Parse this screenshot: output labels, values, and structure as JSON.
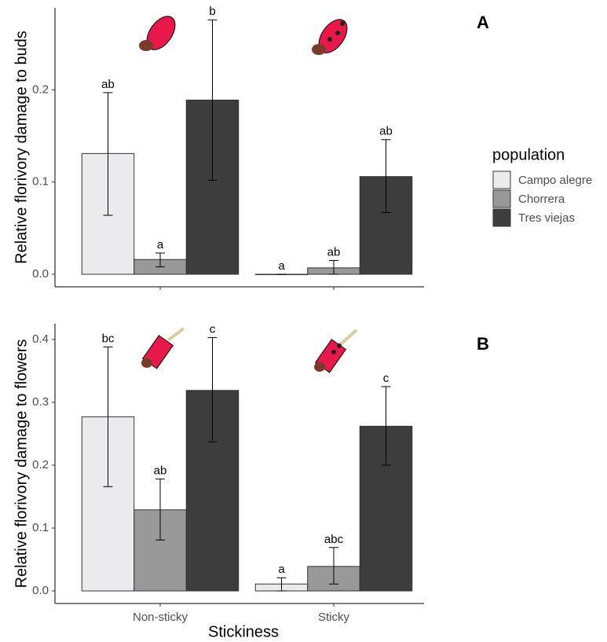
{
  "chart_data": [
    {
      "type": "bar",
      "panel_label": "A",
      "ylabel": "Relative florivory damage to buds",
      "categories": [
        null,
        null
      ],
      "ylim": [
        -0.0136,
        0.289
      ],
      "yticks": [
        {
          "value": 0,
          "label": "0.0"
        },
        0.1,
        0.2
      ],
      "legend_title": "population",
      "series": [
        {
          "name": "Campo alegre",
          "color": "#ebebed",
          "values": [
            0.131,
            0.0
          ],
          "err_low": [
            0.064,
            0.0
          ],
          "err_high": [
            0.197,
            0.0
          ],
          "letters": [
            "ab",
            "a"
          ]
        },
        {
          "name": "Chorrera",
          "color": "#999999",
          "values": [
            0.016,
            0.007
          ],
          "err_low": [
            0.008,
            0.0
          ],
          "err_high": [
            0.023,
            0.015
          ],
          "letters": [
            "a",
            "ab"
          ]
        },
        {
          "name": "Tres viejas",
          "color": "#3d3d3d",
          "values": [
            0.189,
            0.106
          ],
          "err_low": [
            0.102,
            0.067
          ],
          "err_high": [
            0.276,
            0.146
          ],
          "letters": [
            "b",
            "ab"
          ]
        }
      ]
    },
    {
      "type": "bar",
      "panel_label": "B",
      "ylabel": "Relative florivory damage to flowers",
      "xlabel": "Stickiness",
      "categories": [
        "Non-sticky",
        "Sticky"
      ],
      "ylim": [
        -0.02,
        0.425
      ],
      "yticks": [
        {
          "value": 0,
          "label": "0.0"
        },
        0.1,
        0.2,
        0.3,
        0.4
      ],
      "series": [
        {
          "color": "#ebebed",
          "values": [
            0.277,
            0.011
          ],
          "err_low": [
            0.166,
            0.0
          ],
          "err_high": [
            0.388,
            0.021
          ],
          "letters": [
            "bc",
            "a"
          ]
        },
        {
          "color": "#999999",
          "values": [
            0.129,
            0.039
          ],
          "err_low": [
            0.081,
            0.011
          ],
          "err_high": [
            0.178,
            0.069
          ],
          "letters": [
            "ab",
            "abc"
          ]
        },
        {
          "color": "#3d3d3d",
          "values": [
            0.319,
            0.262
          ],
          "err_low": [
            0.237,
            0.2
          ],
          "err_high": [
            0.403,
            0.325
          ],
          "letters": [
            "c",
            "c"
          ]
        }
      ]
    }
  ]
}
